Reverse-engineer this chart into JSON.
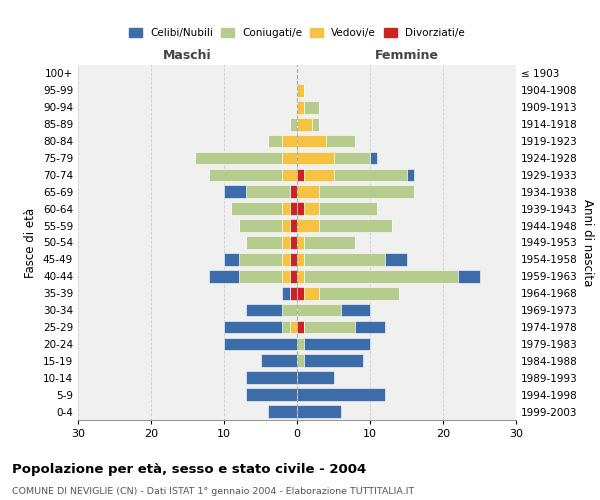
{
  "age_groups": [
    "0-4",
    "5-9",
    "10-14",
    "15-19",
    "20-24",
    "25-29",
    "30-34",
    "35-39",
    "40-44",
    "45-49",
    "50-54",
    "55-59",
    "60-64",
    "65-69",
    "70-74",
    "75-79",
    "80-84",
    "85-89",
    "90-94",
    "95-99",
    "100+"
  ],
  "birth_years": [
    "1999-2003",
    "1994-1998",
    "1989-1993",
    "1984-1988",
    "1979-1983",
    "1974-1978",
    "1969-1973",
    "1964-1968",
    "1959-1963",
    "1954-1958",
    "1949-1953",
    "1944-1948",
    "1939-1943",
    "1934-1938",
    "1929-1933",
    "1924-1928",
    "1919-1923",
    "1914-1918",
    "1909-1913",
    "1904-1908",
    "≤ 1903"
  ],
  "males": {
    "celibe": [
      4,
      7,
      7,
      5,
      10,
      8,
      5,
      1,
      4,
      2,
      0,
      0,
      0,
      3,
      0,
      0,
      0,
      0,
      0,
      0,
      0
    ],
    "coniugato": [
      0,
      0,
      0,
      0,
      0,
      1,
      2,
      0,
      6,
      6,
      5,
      6,
      7,
      6,
      10,
      12,
      2,
      1,
      0,
      0,
      0
    ],
    "vedovo": [
      0,
      0,
      0,
      0,
      0,
      1,
      0,
      0,
      1,
      1,
      1,
      1,
      1,
      0,
      2,
      2,
      2,
      0,
      0,
      0,
      0
    ],
    "divorziato": [
      0,
      0,
      0,
      0,
      0,
      0,
      0,
      1,
      1,
      1,
      1,
      1,
      1,
      1,
      0,
      0,
      0,
      0,
      0,
      0,
      0
    ]
  },
  "females": {
    "nubile": [
      6,
      12,
      5,
      8,
      9,
      4,
      4,
      0,
      3,
      3,
      0,
      0,
      0,
      0,
      1,
      1,
      0,
      0,
      0,
      0,
      0
    ],
    "coniugata": [
      0,
      0,
      0,
      1,
      1,
      7,
      6,
      11,
      21,
      11,
      7,
      10,
      8,
      13,
      10,
      5,
      4,
      1,
      2,
      0,
      0
    ],
    "vedova": [
      0,
      0,
      0,
      0,
      0,
      0,
      0,
      2,
      1,
      1,
      1,
      3,
      2,
      3,
      4,
      5,
      4,
      2,
      1,
      1,
      0
    ],
    "divorziata": [
      0,
      0,
      0,
      0,
      0,
      1,
      0,
      1,
      0,
      0,
      0,
      0,
      1,
      0,
      1,
      0,
      0,
      0,
      0,
      0,
      0
    ]
  },
  "colors": {
    "celibe": "#3d6da8",
    "coniugato": "#b5cc8e",
    "vedovo": "#f5c242",
    "divorziato": "#cc2222"
  },
  "xlim": 30,
  "title": "Popolazione per età, sesso e stato civile - 2004",
  "subtitle": "COMUNE DI NEVIGLIE (CN) - Dati ISTAT 1° gennaio 2004 - Elaborazione TUTTITALIA.IT",
  "ylabel_left": "Fasce di età",
  "ylabel_right": "Anni di nascita",
  "xlabel_left": "Maschi",
  "xlabel_right": "Femmine",
  "bg_color": "#f0f0f0",
  "grid_color": "#cccccc"
}
